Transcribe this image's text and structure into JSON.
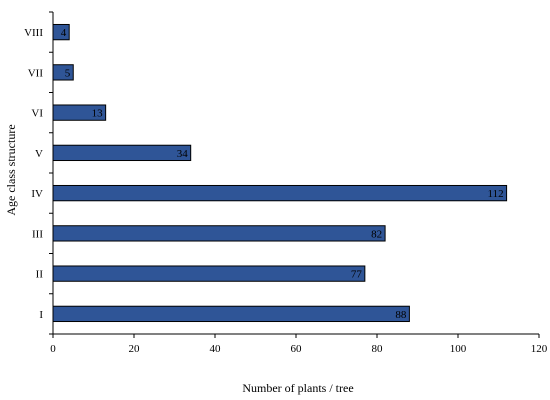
{
  "chart_data": {
    "type": "bar",
    "orientation": "horizontal",
    "categories": [
      "I",
      "II",
      "III",
      "IV",
      "V",
      "VI",
      "VII",
      "VIII"
    ],
    "values": [
      88,
      77,
      82,
      112,
      34,
      13,
      5,
      4
    ],
    "data_labels": [
      "88",
      "77",
      "82",
      "112",
      "34",
      "13",
      "5",
      "4"
    ],
    "title": "",
    "xlabel": "Number of plants / tree",
    "ylabel": "Age class structure",
    "xlim": [
      0,
      120
    ],
    "xticks": [
      0,
      20,
      40,
      60,
      80,
      100,
      120
    ],
    "grid": false,
    "legend": "none",
    "colors": {
      "bar_fill": "#2f5597",
      "bar_stroke": "#000000",
      "axis": "#000000"
    }
  }
}
